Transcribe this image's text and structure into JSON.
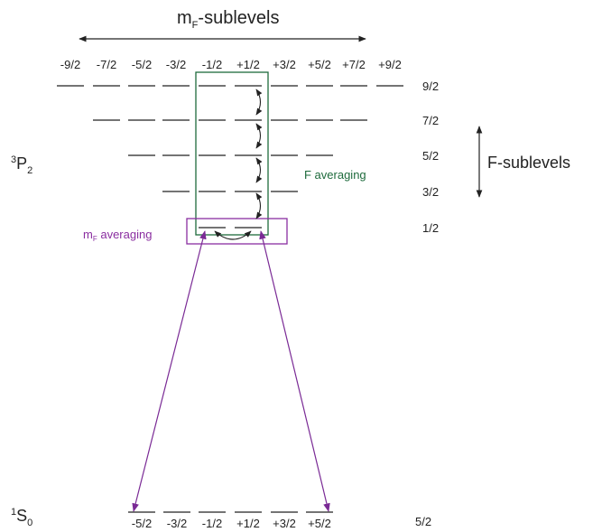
{
  "title": {
    "main": "m",
    "sub": "F",
    "rest": "-sublevels"
  },
  "mf_labels": [
    "-9/2",
    "-7/2",
    "-5/2",
    "-3/2",
    "-1/2",
    "+1/2",
    "+3/2",
    "+5/2",
    "+7/2",
    "+9/2"
  ],
  "p_levels": [
    "9/2",
    "7/2",
    "5/2",
    "3/2",
    "1/2"
  ],
  "upper_state": {
    "sup": "3",
    "main": "P",
    "sub": "2"
  },
  "lower_state": {
    "sup": "1",
    "main": "S",
    "sub": "0"
  },
  "s_mf_labels": [
    "-5/2",
    "-3/2",
    "-1/2",
    "+1/2",
    "+3/2",
    "+5/2"
  ],
  "s_level": "5/2",
  "f_sublevels_label": "F-sublevels",
  "f_averaging": {
    "text": "F averaging",
    "color": "#1e6b3c"
  },
  "mf_averaging": {
    "main": "m",
    "sub": "F",
    "rest": " averaging",
    "color": "#8a2ea0"
  },
  "colors": {
    "transition": "#7a2a95",
    "box_f": "#1e6b3c",
    "box_mf": "#8a2ea0"
  }
}
